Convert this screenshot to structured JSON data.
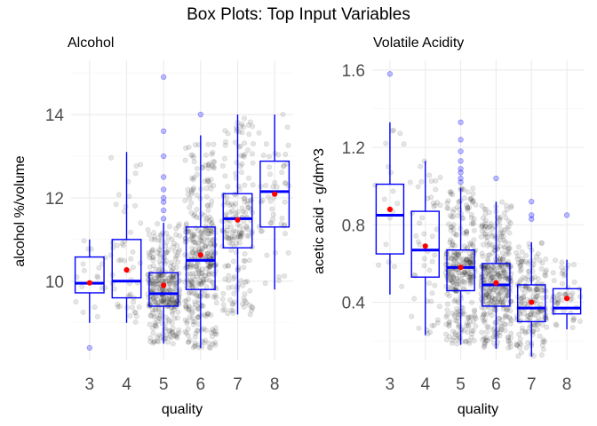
{
  "figure": {
    "title": "Box Plots: Top Input Variables"
  },
  "colors": {
    "box": "#0000ff",
    "mean": "#ff0000",
    "jitter": "#000000",
    "outlier": "#0000ff",
    "grid": "#ebebeb"
  },
  "chart_data": [
    {
      "type": "box",
      "title": "Alcohol",
      "xlabel": "quality",
      "ylabel": "alcohol %/volume",
      "categories": [
        "3",
        "4",
        "5",
        "6",
        "7",
        "8"
      ],
      "ylim": [
        8.1,
        15.3
      ],
      "yticks": [
        10,
        12,
        14
      ],
      "grid": true,
      "boxes": [
        {
          "q": "3",
          "min": 9.0,
          "q1": 9.72,
          "median": 9.95,
          "q3": 10.58,
          "max": 11.0,
          "mean": 9.96,
          "outliers": [
            8.4
          ]
        },
        {
          "q": "4",
          "min": 9.0,
          "q1": 9.6,
          "median": 10.0,
          "q3": 11.0,
          "max": 13.1,
          "mean": 10.27,
          "outliers": []
        },
        {
          "q": "5",
          "min": 8.5,
          "q1": 9.4,
          "median": 9.7,
          "q3": 10.2,
          "max": 11.4,
          "mean": 9.9,
          "outliers": [
            11.5,
            11.7,
            11.9,
            12.0,
            12.2,
            12.5,
            13.0,
            13.6,
            14.9
          ]
        },
        {
          "q": "6",
          "min": 8.4,
          "q1": 9.8,
          "median": 10.5,
          "q3": 11.3,
          "max": 13.5,
          "mean": 10.63,
          "outliers": [
            14.0
          ]
        },
        {
          "q": "7",
          "min": 9.2,
          "q1": 10.8,
          "median": 11.5,
          "q3": 12.1,
          "max": 14.0,
          "mean": 11.47,
          "outliers": []
        },
        {
          "q": "8",
          "min": 9.8,
          "q1": 11.3,
          "median": 12.15,
          "q3": 12.88,
          "max": 14.0,
          "mean": 12.09,
          "outliers": []
        }
      ]
    },
    {
      "type": "box",
      "title": "Volatile Acidity",
      "xlabel": "quality",
      "ylabel": "acetic acid - g/dm^3",
      "categories": [
        "3",
        "4",
        "5",
        "6",
        "7",
        "8"
      ],
      "ylim": [
        0.1,
        1.65
      ],
      "yticks": [
        0.4,
        0.8,
        1.2,
        1.6
      ],
      "grid": true,
      "boxes": [
        {
          "q": "3",
          "min": 0.44,
          "q1": 0.65,
          "median": 0.85,
          "q3": 1.01,
          "max": 1.33,
          "mean": 0.88,
          "outliers": [
            1.58
          ]
        },
        {
          "q": "4",
          "min": 0.23,
          "q1": 0.53,
          "median": 0.67,
          "q3": 0.87,
          "max": 1.13,
          "mean": 0.69,
          "outliers": []
        },
        {
          "q": "5",
          "min": 0.18,
          "q1": 0.46,
          "median": 0.58,
          "q3": 0.67,
          "max": 0.99,
          "mean": 0.58,
          "outliers": [
            1.02,
            1.04,
            1.07,
            1.09,
            1.13,
            1.18,
            1.24,
            1.33
          ]
        },
        {
          "q": "6",
          "min": 0.16,
          "q1": 0.38,
          "median": 0.49,
          "q3": 0.6,
          "max": 0.92,
          "mean": 0.5,
          "outliers": [
            1.04
          ]
        },
        {
          "q": "7",
          "min": 0.12,
          "q1": 0.3,
          "median": 0.37,
          "q3": 0.49,
          "max": 0.71,
          "mean": 0.4,
          "outliers": [
            0.83,
            0.85,
            0.92
          ]
        },
        {
          "q": "8",
          "min": 0.26,
          "q1": 0.34,
          "median": 0.37,
          "q3": 0.47,
          "max": 0.62,
          "mean": 0.42,
          "outliers": [
            0.85
          ]
        }
      ]
    }
  ]
}
